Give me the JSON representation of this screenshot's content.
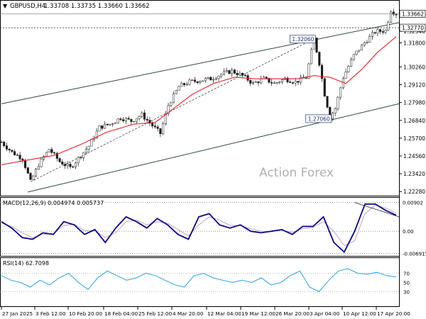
{
  "header": {
    "symbol": "GBPUSD,H4",
    "ohlc": "1.33708 1.33735 1.33660 1.33662"
  },
  "watermark": "Action Forex",
  "colors": {
    "candle": "#1a1a1a",
    "ma": "#e0202a",
    "macd_main": "#0a0a80",
    "macd_signal": "#c8a0c8",
    "rsi": "#2aa0e0",
    "price_box": "#ffffff",
    "grid": "#000000"
  },
  "chart_data": [
    {
      "type": "line",
      "panel": "price",
      "symbol": "GBPUSD",
      "timeframe": "H4",
      "ylim": [
        1.222,
        1.34
      ],
      "y_ticks": [
        "1.32540",
        "1.31800",
        "1.30260",
        "1.29120",
        "1.27980",
        "1.26840",
        "1.25700",
        "1.24560",
        "1.23420",
        "1.22280"
      ],
      "y_tick_values": [
        1.3254,
        1.318,
        1.3026,
        1.2912,
        1.2798,
        1.2684,
        1.257,
        1.2456,
        1.2342,
        1.2228
      ],
      "x_ticks": [
        "27 Jan 2025",
        "3 Feb 12:00",
        "10 Feb 20:00",
        "18 Feb 04:00",
        "25 Feb 12:00",
        "4 Mar 20:00",
        "12 Mar 04:00",
        "19 Mar 12:00",
        "26 Mar 20:00",
        "3 Apr 04:00",
        "10 Apr 12:00",
        "17 Apr 20:00"
      ],
      "current_price_label": "1.33662",
      "current_price": 1.33662,
      "level_label": "1.32770",
      "level": 1.3277,
      "annotations": [
        {
          "text": "1.32060",
          "value": 1.3206,
          "bar": 118
        },
        {
          "text": "1.27060",
          "value": 1.2706,
          "bar": 124
        }
      ],
      "price_path": [
        [
          0,
          1.2545
        ],
        [
          4,
          1.248
        ],
        [
          8,
          1.244
        ],
        [
          11,
          1.229
        ],
        [
          14,
          1.24
        ],
        [
          18,
          1.25
        ],
        [
          22,
          1.242
        ],
        [
          26,
          1.238
        ],
        [
          29,
          1.244
        ],
        [
          33,
          1.252
        ],
        [
          37,
          1.264
        ],
        [
          41,
          1.266
        ],
        [
          45,
          1.27
        ],
        [
          49,
          1.268
        ],
        [
          53,
          1.272
        ],
        [
          57,
          1.265
        ],
        [
          60,
          1.26
        ],
        [
          63,
          1.278
        ],
        [
          67,
          1.29
        ],
        [
          71,
          1.293
        ],
        [
          75,
          1.294
        ],
        [
          79,
          1.295
        ],
        [
          83,
          1.298
        ],
        [
          87,
          1.3
        ],
        [
          91,
          1.297
        ],
        [
          95,
          1.292
        ],
        [
          99,
          1.295
        ],
        [
          103,
          1.292
        ],
        [
          107,
          1.295
        ],
        [
          111,
          1.293
        ],
        [
          115,
          1.296
        ],
        [
          118,
          1.3206
        ],
        [
          120,
          1.305
        ],
        [
          122,
          1.285
        ],
        [
          124,
          1.2706
        ],
        [
          126,
          1.276
        ],
        [
          129,
          1.296
        ],
        [
          133,
          1.31
        ],
        [
          137,
          1.318
        ],
        [
          141,
          1.325
        ],
        [
          145,
          1.326
        ],
        [
          147,
          1.339
        ],
        [
          149,
          1.3366
        ]
      ],
      "bars": 150,
      "ma_path": [
        [
          0,
          1.24
        ],
        [
          10,
          1.243
        ],
        [
          20,
          1.246
        ],
        [
          30,
          1.253
        ],
        [
          40,
          1.261
        ],
        [
          50,
          1.266
        ],
        [
          58,
          1.267
        ],
        [
          65,
          1.276
        ],
        [
          72,
          1.285
        ],
        [
          80,
          1.292
        ],
        [
          88,
          1.296
        ],
        [
          96,
          1.295
        ],
        [
          104,
          1.295
        ],
        [
          112,
          1.295
        ],
        [
          118,
          1.297
        ],
        [
          124,
          1.296
        ],
        [
          130,
          1.292
        ],
        [
          136,
          1.301
        ],
        [
          142,
          1.312
        ],
        [
          149,
          1.322
        ]
      ],
      "channel_upper": [
        [
          0,
          1.279
        ],
        [
          149,
          1.331
        ]
      ],
      "channel_lower": [
        [
          10,
          1.2225
        ],
        [
          149,
          1.279
        ]
      ],
      "dashed_trendline": [
        [
          11,
          1.229
        ],
        [
          118,
          1.3206
        ]
      ],
      "grid": false,
      "title": "",
      "xlabel": "",
      "ylabel": ""
    },
    {
      "type": "line",
      "panel": "macd",
      "label": "MACD(12,26,9) 0.004974 0.005737",
      "ylim": [
        -0.0075,
        0.0098
      ],
      "y_ticks": [
        "0.00902",
        "0.00",
        "-0.006915"
      ],
      "y_tick_values": [
        0.00902,
        0.0,
        -0.006915
      ],
      "dotted_level": 0.00902,
      "series": [
        {
          "role": "main",
          "values": [
            0.003,
            0.001,
            -0.002,
            -0.0025,
            -0.0005,
            -0.001,
            0.003,
            0.002,
            -0.001,
            0.0005,
            -0.0035,
            0.001,
            0.0045,
            0.003,
            0.001,
            0.004,
            0.002,
            -0.001,
            -0.0025,
            0.0045,
            0.0055,
            0.002,
            0.001,
            0.002,
            0.0,
            -0.0005,
            0.0,
            0.0005,
            -0.001,
            0.0015,
            0.0015,
            0.0045,
            -0.0035,
            -0.0065,
            0.0,
            0.0085,
            0.0085,
            0.0065,
            0.005
          ]
        },
        {
          "role": "signal",
          "values": [
            0.0025,
            0.0015,
            -0.0005,
            -0.002,
            -0.001,
            -0.0008,
            0.0018,
            0.0022,
            0.0002,
            0.0002,
            -0.002,
            -0.0005,
            0.003,
            0.0035,
            0.002,
            0.003,
            0.0025,
            0.0005,
            -0.0015,
            0.002,
            0.0045,
            0.0035,
            0.0018,
            0.0018,
            0.0008,
            0.0,
            0.0,
            0.0003,
            -0.0004,
            0.0008,
            0.0012,
            0.003,
            0.0,
            -0.0045,
            -0.003,
            0.0055,
            0.0082,
            0.0072,
            0.0057
          ]
        }
      ],
      "trendline": [
        [
          34,
          0.009
        ],
        [
          38,
          0.0045
        ]
      ]
    },
    {
      "type": "line",
      "panel": "rsi",
      "label": "RSI(14) 62.7098",
      "ylim": [
        0,
        100
      ],
      "y_ticks": [
        "70",
        "50",
        "30"
      ],
      "y_tick_values": [
        70,
        50,
        30
      ],
      "series": [
        {
          "role": "rsi",
          "values": [
            65,
            55,
            50,
            40,
            55,
            45,
            60,
            70,
            50,
            35,
            60,
            75,
            65,
            55,
            60,
            70,
            65,
            55,
            45,
            40,
            65,
            70,
            60,
            55,
            50,
            55,
            50,
            60,
            45,
            50,
            65,
            75,
            40,
            30,
            55,
            75,
            80,
            70,
            68,
            72,
            65,
            62
          ]
        }
      ]
    }
  ]
}
